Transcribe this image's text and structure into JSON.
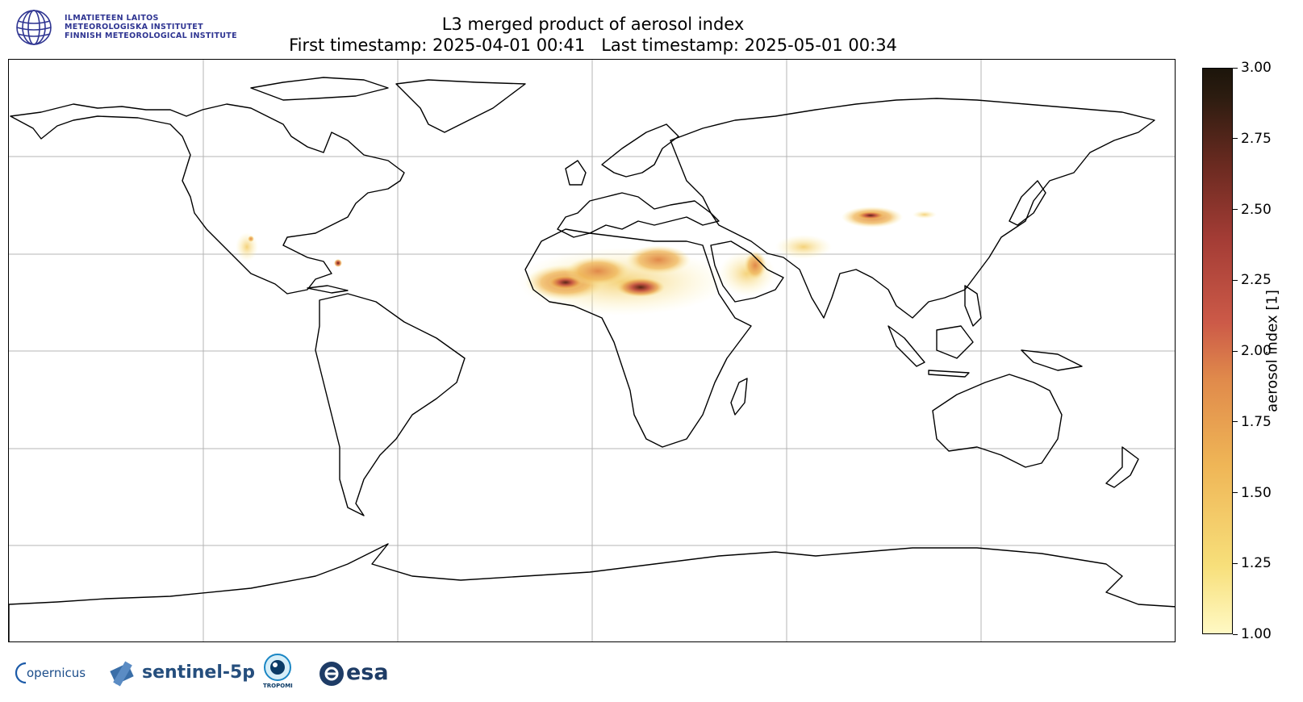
{
  "header": {
    "title_line1": "L3 merged product of aerosol index",
    "title_line2": "First timestamp: 2025-04-01 00:41   Last timestamp: 2025-05-01 00:34"
  },
  "institute": {
    "line1": "ILMATIETEEN LAITOS",
    "line2": "METEOROLOGISKA INSTITUTET",
    "line3": "FINNISH METEOROLOGICAL INSTITUTE",
    "color": "#2f3592"
  },
  "colorbar": {
    "label": "aerosol index [1]",
    "min": 1.0,
    "max": 3.0,
    "ticks": [
      "1.00",
      "1.25",
      "1.50",
      "1.75",
      "2.00",
      "2.25",
      "2.50",
      "2.75",
      "3.00"
    ],
    "colormap": "yellow-orange-red-brown-black"
  },
  "map": {
    "projection": "PlateCarree",
    "lon_range": [
      -180,
      180
    ],
    "lat_range": [
      -90,
      90
    ],
    "gridlines": true,
    "grid_lon": [
      -120,
      -60,
      0,
      60,
      120
    ],
    "grid_lat": [
      -60,
      -30,
      0,
      30,
      60
    ]
  },
  "footer_logos": {
    "copernicus": "opernicus",
    "sentinel": "sentinel-5p",
    "tropomi": "TROPOMI",
    "esa": "esa"
  }
}
